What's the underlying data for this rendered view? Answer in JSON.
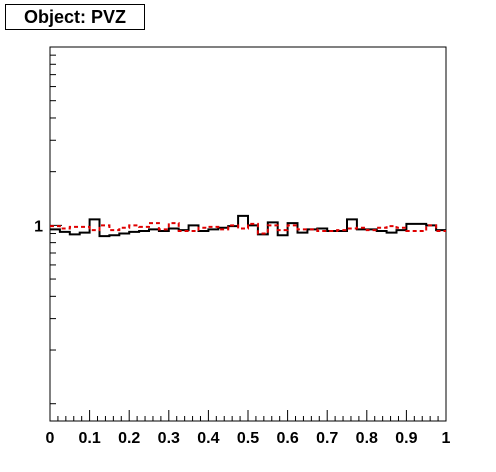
{
  "title": "Object: PVZ",
  "chart_data": {
    "type": "line",
    "title": "Object: PVZ",
    "xlabel": "",
    "ylabel": "",
    "xlim": [
      0,
      1
    ],
    "ylim": [
      0.08,
      10
    ],
    "y_scale": "log",
    "x_tick_labels": [
      "0",
      "0.1",
      "0.2",
      "0.3",
      "0.4",
      "0.5",
      "0.6",
      "0.7",
      "0.8",
      "0.9",
      "1"
    ],
    "y_tick_labels": [
      {
        "value": 1,
        "label": "1"
      }
    ],
    "grid": false,
    "bins": 40,
    "series": [
      {
        "style": "solid",
        "color": "#000000",
        "values": [
          0.95,
          0.92,
          0.89,
          0.91,
          1.08,
          0.87,
          0.88,
          0.9,
          0.92,
          0.93,
          0.95,
          0.93,
          0.96,
          0.94,
          1.0,
          0.93,
          0.95,
          0.97,
          0.99,
          1.13,
          1.0,
          0.89,
          1.04,
          0.88,
          1.03,
          0.91,
          0.95,
          0.96,
          0.93,
          0.93,
          1.08,
          0.95,
          0.95,
          0.93,
          0.91,
          0.94,
          1.02,
          1.02,
          1.0,
          0.94
        ]
      },
      {
        "style": "dashed",
        "color": "#e00000",
        "values": [
          0.99,
          0.96,
          0.98,
          0.98,
          0.94,
          1.0,
          0.94,
          0.97,
          1.0,
          0.98,
          1.03,
          0.95,
          1.03,
          0.93,
          0.93,
          0.97,
          0.98,
          0.95,
          1.0,
          0.96,
          1.02,
          0.9,
          1.0,
          0.94,
          1.0,
          0.95,
          0.95,
          0.93,
          0.93,
          0.94,
          0.96,
          0.97,
          0.94,
          0.97,
          0.99,
          0.97,
          0.93,
          0.93,
          1.0,
          0.93
        ]
      }
    ]
  }
}
